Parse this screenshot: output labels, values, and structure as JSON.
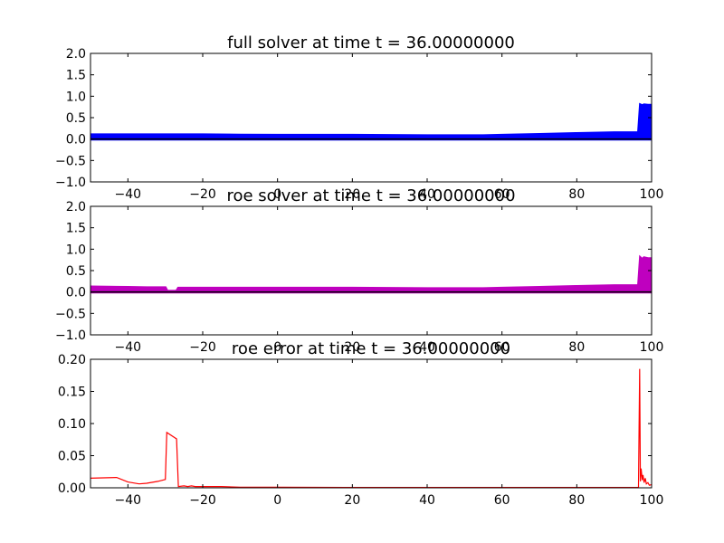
{
  "chart_data": [
    {
      "type": "area",
      "title": "full solver at time t =    36.00000000",
      "xlim": [
        -50,
        100
      ],
      "ylim": [
        -1.0,
        2.0
      ],
      "xticks": [
        "−40",
        "−20",
        "0",
        "20",
        "40",
        "60",
        "80",
        "100"
      ],
      "yticks": [
        "−1.0",
        "−0.5",
        "0.0",
        "0.5",
        "1.0",
        "1.5",
        "2.0"
      ],
      "color": "#0000ff",
      "baseline": 0.0,
      "x": [
        -50,
        -40,
        -30,
        -20,
        -10,
        0,
        10,
        20,
        30,
        40,
        50,
        55,
        60,
        70,
        80,
        90,
        96.5,
        97,
        97.5,
        98,
        99,
        100
      ],
      "values": [
        0.1,
        0.1,
        0.1,
        0.1,
        0.095,
        0.09,
        0.09,
        0.09,
        0.085,
        0.08,
        0.08,
        0.08,
        0.09,
        0.11,
        0.13,
        0.15,
        0.15,
        0.8,
        0.78,
        0.8,
        0.79,
        0.79
      ]
    },
    {
      "type": "area",
      "title": "roe solver at time t =    36.00000000",
      "xlim": [
        -50,
        100
      ],
      "ylim": [
        -1.0,
        2.0
      ],
      "xticks": [
        "−40",
        "−20",
        "0",
        "20",
        "40",
        "60",
        "80",
        "100"
      ],
      "yticks": [
        "−1.0",
        "−0.5",
        "0.0",
        "0.5",
        "1.0",
        "1.5",
        "2.0"
      ],
      "color": "#bf00bf",
      "baseline": 0.0,
      "x": [
        -50,
        -40,
        -35,
        -30,
        -29.5,
        -27,
        -26.5,
        -20,
        -10,
        0,
        10,
        20,
        30,
        40,
        50,
        55,
        60,
        70,
        80,
        90,
        96.5,
        97,
        97.5,
        98,
        99,
        100
      ],
      "values": [
        0.12,
        0.11,
        0.1,
        0.1,
        0.02,
        0.02,
        0.09,
        0.09,
        0.09,
        0.09,
        0.09,
        0.09,
        0.085,
        0.08,
        0.08,
        0.08,
        0.09,
        0.11,
        0.13,
        0.15,
        0.15,
        0.8,
        0.76,
        0.8,
        0.78,
        0.78
      ]
    },
    {
      "type": "line",
      "title": "roe error at time t =    36.00000000",
      "xlim": [
        -50,
        100
      ],
      "ylim": [
        0.0,
        0.2
      ],
      "xticks": [
        "−40",
        "−20",
        "0",
        "20",
        "40",
        "60",
        "80",
        "100"
      ],
      "yticks": [
        "0.00",
        "0.05",
        "0.10",
        "0.15",
        "0.20"
      ],
      "color": "#ff0000",
      "x": [
        -50,
        -43,
        -40,
        -37,
        -35,
        -32,
        -30,
        -29.6,
        -27,
        -26.5,
        -25,
        -24,
        -23,
        -22,
        -21,
        -20,
        -15,
        -10,
        0,
        20,
        40,
        60,
        80,
        96.5,
        96.8,
        97.0,
        97.2,
        97.5,
        97.7,
        98.0,
        98.3,
        98.6,
        99.0,
        99.4,
        100
      ],
      "values": [
        0.015,
        0.016,
        0.009,
        0.006,
        0.007,
        0.01,
        0.013,
        0.086,
        0.076,
        0.002,
        0.003,
        0.002,
        0.003,
        0.002,
        0.002,
        0.002,
        0.002,
        0.001,
        0.001,
        0.0005,
        0.0005,
        0.0005,
        0.0005,
        0.0005,
        0.185,
        0.01,
        0.03,
        0.012,
        0.02,
        0.008,
        0.015,
        0.006,
        0.008,
        0.004,
        0.005
      ]
    }
  ]
}
